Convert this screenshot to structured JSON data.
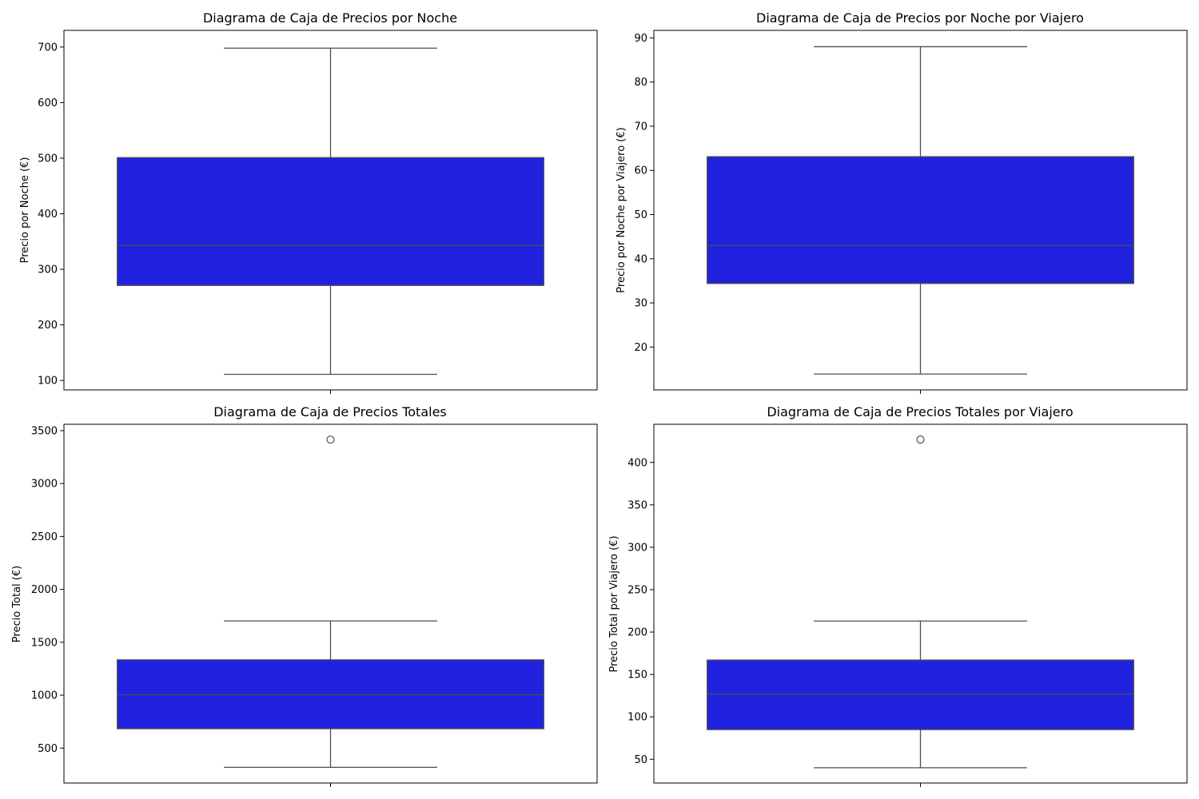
{
  "chart_data": [
    {
      "type": "box",
      "title": "Diagrama de Caja de Precios por Noche",
      "xlabel": "",
      "ylabel": "Precio por Noche (€)",
      "ylim": [
        83,
        730
      ],
      "yticks": [
        100,
        200,
        300,
        400,
        500,
        600,
        700
      ],
      "grid": false,
      "color": "#2121e0",
      "stats": {
        "whisker_low": 111,
        "q1": 271,
        "median": 343,
        "q3": 501,
        "whisker_high": 698
      },
      "outliers": []
    },
    {
      "type": "box",
      "title": "Diagrama de Caja de Precios por Noche por Viajero",
      "xlabel": "",
      "ylabel": "Precio por Noche por Viajero (€)",
      "ylim": [
        10.3,
        91.7
      ],
      "yticks": [
        20,
        30,
        40,
        50,
        60,
        70,
        80,
        90
      ],
      "grid": false,
      "color": "#2121e0",
      "stats": {
        "whisker_low": 13.9,
        "q1": 34.4,
        "median": 43.0,
        "q3": 63.1,
        "whisker_high": 88.0
      },
      "outliers": []
    },
    {
      "type": "box",
      "title": "Diagrama de Caja de Precios Totales",
      "xlabel": "",
      "ylabel": "Precio Total (€)",
      "ylim": [
        170,
        3560
      ],
      "yticks": [
        500,
        1000,
        1500,
        2000,
        2500,
        3000,
        3500
      ],
      "grid": false,
      "color": "#2121e0",
      "stats": {
        "whisker_low": 318,
        "q1": 683,
        "median": 1004,
        "q3": 1334,
        "whisker_high": 1702
      },
      "outliers": [
        3415
      ]
    },
    {
      "type": "box",
      "title": "Diagrama de Caja de Precios Totales por Viajero",
      "xlabel": "",
      "ylabel": "Precio Total por Viajero (€)",
      "ylim": [
        22,
        445
      ],
      "yticks": [
        50,
        100,
        150,
        200,
        250,
        300,
        350,
        400
      ],
      "grid": false,
      "color": "#2121e0",
      "stats": {
        "whisker_low": 40,
        "q1": 85,
        "median": 127,
        "q3": 167,
        "whisker_high": 213
      },
      "outliers": [
        427
      ]
    }
  ]
}
